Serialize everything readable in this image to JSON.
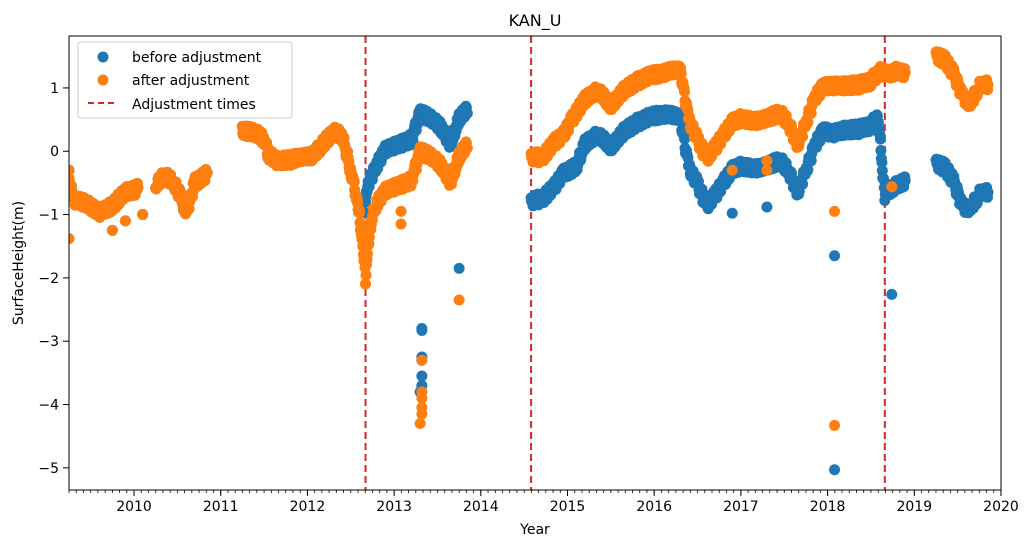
{
  "chart_data": {
    "type": "scatter",
    "title": "KAN_U",
    "xlabel": "Year",
    "ylabel": "SurfaceHeight(m)",
    "xlim": [
      2009.25,
      2020.0
    ],
    "ylim": [
      -5.35,
      1.82
    ],
    "x_ticks": [
      "2010",
      "2011",
      "2012",
      "2013",
      "2014",
      "2015",
      "2016",
      "2017",
      "2018",
      "2019",
      "2020"
    ],
    "y_ticks": [
      1,
      0,
      -1,
      -2,
      -3,
      -4,
      -5
    ],
    "y_tick_labels": [
      "1",
      "0",
      "−1",
      "−2",
      "−3",
      "−4",
      "−5"
    ],
    "legend_position": "top-left",
    "legend": {
      "before": "before adjustment",
      "after": "after adjustment",
      "adjust": "Adjustment times"
    },
    "colors": {
      "before": "#1f77b4",
      "after": "#ff7f0e",
      "adjust": "#d62728"
    },
    "adjustment_times": [
      2012.67,
      2014.58,
      2018.66
    ],
    "series": [
      {
        "name": "before adjustment",
        "color": "#1f77b4",
        "trend": [
          [
            2009.25,
            -0.45
          ],
          [
            2009.3,
            -0.75
          ],
          [
            2009.45,
            -0.8
          ],
          [
            2009.6,
            -0.95
          ],
          [
            2009.75,
            -0.85
          ],
          [
            2009.9,
            -0.65
          ],
          [
            2010.05,
            -0.6
          ],
          [
            2010.25,
            -0.55
          ],
          [
            2010.35,
            -0.4
          ],
          [
            2010.45,
            -0.5
          ],
          [
            2010.55,
            -0.75
          ],
          [
            2010.6,
            -1.0
          ],
          [
            2010.7,
            -0.5
          ],
          [
            2010.85,
            -0.35
          ],
          [
            2011.25,
            0.35
          ],
          [
            2011.4,
            0.3
          ],
          [
            2011.5,
            0.2
          ],
          [
            2011.55,
            -0.05
          ],
          [
            2011.65,
            -0.15
          ],
          [
            2011.8,
            -0.15
          ],
          [
            2011.95,
            -0.1
          ],
          [
            2012.05,
            -0.1
          ],
          [
            2012.15,
            0.05
          ],
          [
            2012.3,
            0.3
          ],
          [
            2012.4,
            0.25
          ],
          [
            2012.5,
            -0.3
          ],
          [
            2012.58,
            -0.8
          ],
          [
            2012.64,
            -1.5
          ],
          [
            2012.67,
            -0.7
          ],
          [
            2012.7,
            -0.5
          ],
          [
            2012.8,
            -0.2
          ],
          [
            2012.9,
            0.05
          ],
          [
            2013.0,
            0.1
          ],
          [
            2013.1,
            0.15
          ],
          [
            2013.2,
            0.2
          ],
          [
            2013.3,
            0.6
          ],
          [
            2013.45,
            0.5
          ],
          [
            2013.55,
            0.35
          ],
          [
            2013.65,
            0.1
          ],
          [
            2013.75,
            0.5
          ],
          [
            2013.85,
            0.65
          ],
          [
            2014.58,
            -0.8
          ],
          [
            2014.7,
            -0.75
          ],
          [
            2014.85,
            -0.55
          ],
          [
            2014.95,
            -0.35
          ],
          [
            2015.1,
            -0.25
          ],
          [
            2015.2,
            0.1
          ],
          [
            2015.35,
            0.25
          ],
          [
            2015.5,
            0.05
          ],
          [
            2015.65,
            0.3
          ],
          [
            2015.8,
            0.45
          ],
          [
            2015.95,
            0.55
          ],
          [
            2016.1,
            0.6
          ],
          [
            2016.2,
            0.6
          ],
          [
            2016.3,
            0.55
          ],
          [
            2016.4,
            -0.25
          ],
          [
            2016.5,
            -0.5
          ],
          [
            2016.6,
            -0.85
          ],
          [
            2016.7,
            -0.7
          ],
          [
            2016.8,
            -0.5
          ],
          [
            2016.9,
            -0.3
          ],
          [
            2017.0,
            -0.25
          ],
          [
            2017.15,
            -0.3
          ],
          [
            2017.3,
            -0.25
          ],
          [
            2017.45,
            -0.15
          ],
          [
            2017.55,
            -0.3
          ],
          [
            2017.65,
            -0.65
          ],
          [
            2017.75,
            -0.3
          ],
          [
            2017.85,
            0.1
          ],
          [
            2017.95,
            0.35
          ],
          [
            2018.05,
            0.3
          ],
          [
            2018.2,
            0.35
          ],
          [
            2018.35,
            0.35
          ],
          [
            2018.5,
            0.4
          ],
          [
            2018.58,
            0.55
          ],
          [
            2018.66,
            -0.7
          ],
          [
            2018.7,
            -0.65
          ],
          [
            2018.8,
            -0.55
          ],
          [
            2018.9,
            -0.5
          ],
          [
            2019.25,
            -0.2
          ],
          [
            2019.35,
            -0.25
          ],
          [
            2019.45,
            -0.45
          ],
          [
            2019.55,
            -0.85
          ],
          [
            2019.65,
            -0.9
          ],
          [
            2019.72,
            -0.75
          ],
          [
            2019.8,
            -0.6
          ],
          [
            2019.85,
            -0.65
          ]
        ],
        "outliers": [
          [
            2009.25,
            -0.3
          ],
          [
            2009.75,
            -1.25
          ],
          [
            2009.9,
            -1.1
          ],
          [
            2010.1,
            -1.0
          ],
          [
            2013.08,
            -0.6
          ],
          [
            2013.32,
            -2.8
          ],
          [
            2013.32,
            -2.83
          ],
          [
            2013.32,
            -3.25
          ],
          [
            2013.32,
            -3.3
          ],
          [
            2013.32,
            -3.55
          ],
          [
            2013.32,
            -3.7
          ],
          [
            2013.3,
            -3.8
          ],
          [
            2013.75,
            -1.85
          ],
          [
            2016.9,
            -0.98
          ],
          [
            2017.3,
            -0.88
          ],
          [
            2018.08,
            -1.65
          ],
          [
            2018.08,
            -5.03
          ],
          [
            2018.74,
            -2.26
          ]
        ]
      },
      {
        "name": "after adjustment",
        "color": "#ff7f0e",
        "trend": [
          [
            2009.25,
            -0.45
          ],
          [
            2009.3,
            -0.75
          ],
          [
            2009.45,
            -0.8
          ],
          [
            2009.6,
            -0.95
          ],
          [
            2009.75,
            -0.85
          ],
          [
            2009.9,
            -0.65
          ],
          [
            2010.05,
            -0.6
          ],
          [
            2010.25,
            -0.55
          ],
          [
            2010.35,
            -0.4
          ],
          [
            2010.45,
            -0.5
          ],
          [
            2010.55,
            -0.75
          ],
          [
            2010.6,
            -1.0
          ],
          [
            2010.7,
            -0.5
          ],
          [
            2010.85,
            -0.35
          ],
          [
            2011.25,
            0.35
          ],
          [
            2011.4,
            0.3
          ],
          [
            2011.5,
            0.2
          ],
          [
            2011.55,
            -0.05
          ],
          [
            2011.65,
            -0.15
          ],
          [
            2011.8,
            -0.15
          ],
          [
            2011.95,
            -0.1
          ],
          [
            2012.05,
            -0.1
          ],
          [
            2012.15,
            0.05
          ],
          [
            2012.3,
            0.3
          ],
          [
            2012.4,
            0.25
          ],
          [
            2012.5,
            -0.3
          ],
          [
            2012.58,
            -0.8
          ],
          [
            2012.64,
            -1.5
          ],
          [
            2012.67,
            -2.0
          ],
          [
            2012.72,
            -1.2
          ],
          [
            2012.8,
            -0.8
          ],
          [
            2012.9,
            -0.6
          ],
          [
            2013.0,
            -0.55
          ],
          [
            2013.1,
            -0.5
          ],
          [
            2013.2,
            -0.45
          ],
          [
            2013.3,
            0.0
          ],
          [
            2013.45,
            -0.1
          ],
          [
            2013.55,
            -0.25
          ],
          [
            2013.65,
            -0.5
          ],
          [
            2013.75,
            -0.1
          ],
          [
            2013.85,
            0.1
          ],
          [
            2014.58,
            -0.1
          ],
          [
            2014.7,
            -0.1
          ],
          [
            2014.85,
            0.15
          ],
          [
            2014.95,
            0.25
          ],
          [
            2015.05,
            0.5
          ],
          [
            2015.2,
            0.8
          ],
          [
            2015.35,
            0.95
          ],
          [
            2015.5,
            0.7
          ],
          [
            2015.65,
            0.95
          ],
          [
            2015.8,
            1.1
          ],
          [
            2015.95,
            1.2
          ],
          [
            2016.1,
            1.25
          ],
          [
            2016.2,
            1.3
          ],
          [
            2016.3,
            1.3
          ],
          [
            2016.4,
            0.5
          ],
          [
            2016.5,
            0.2
          ],
          [
            2016.6,
            -0.1
          ],
          [
            2016.7,
            0.05
          ],
          [
            2016.8,
            0.25
          ],
          [
            2016.9,
            0.45
          ],
          [
            2017.0,
            0.5
          ],
          [
            2017.15,
            0.45
          ],
          [
            2017.3,
            0.5
          ],
          [
            2017.45,
            0.6
          ],
          [
            2017.55,
            0.45
          ],
          [
            2017.65,
            0.1
          ],
          [
            2017.75,
            0.45
          ],
          [
            2017.85,
            0.85
          ],
          [
            2017.95,
            1.05
          ],
          [
            2018.05,
            1.05
          ],
          [
            2018.2,
            1.05
          ],
          [
            2018.35,
            1.05
          ],
          [
            2018.5,
            1.1
          ],
          [
            2018.58,
            1.25
          ],
          [
            2018.66,
            1.25
          ],
          [
            2018.7,
            1.2
          ],
          [
            2018.8,
            1.25
          ],
          [
            2018.9,
            1.2
          ],
          [
            2019.25,
            1.5
          ],
          [
            2019.35,
            1.45
          ],
          [
            2019.45,
            1.25
          ],
          [
            2019.55,
            0.9
          ],
          [
            2019.65,
            0.75
          ],
          [
            2019.72,
            0.95
          ],
          [
            2019.8,
            1.1
          ],
          [
            2019.85,
            1.05
          ]
        ],
        "outliers": [
          [
            2009.25,
            -0.3
          ],
          [
            2009.25,
            -1.38
          ],
          [
            2009.75,
            -1.25
          ],
          [
            2009.9,
            -1.1
          ],
          [
            2010.1,
            -1.0
          ],
          [
            2013.08,
            -0.95
          ],
          [
            2013.08,
            -1.15
          ],
          [
            2013.32,
            -3.3
          ],
          [
            2013.32,
            -3.8
          ],
          [
            2013.32,
            -3.9
          ],
          [
            2013.32,
            -4.05
          ],
          [
            2013.32,
            -4.15
          ],
          [
            2013.3,
            -4.3
          ],
          [
            2013.75,
            -2.35
          ],
          [
            2016.9,
            -0.3
          ],
          [
            2017.3,
            -0.3
          ],
          [
            2017.3,
            -0.15
          ],
          [
            2018.08,
            -0.95
          ],
          [
            2018.08,
            -4.33
          ],
          [
            2018.74,
            -0.56
          ]
        ]
      }
    ]
  }
}
